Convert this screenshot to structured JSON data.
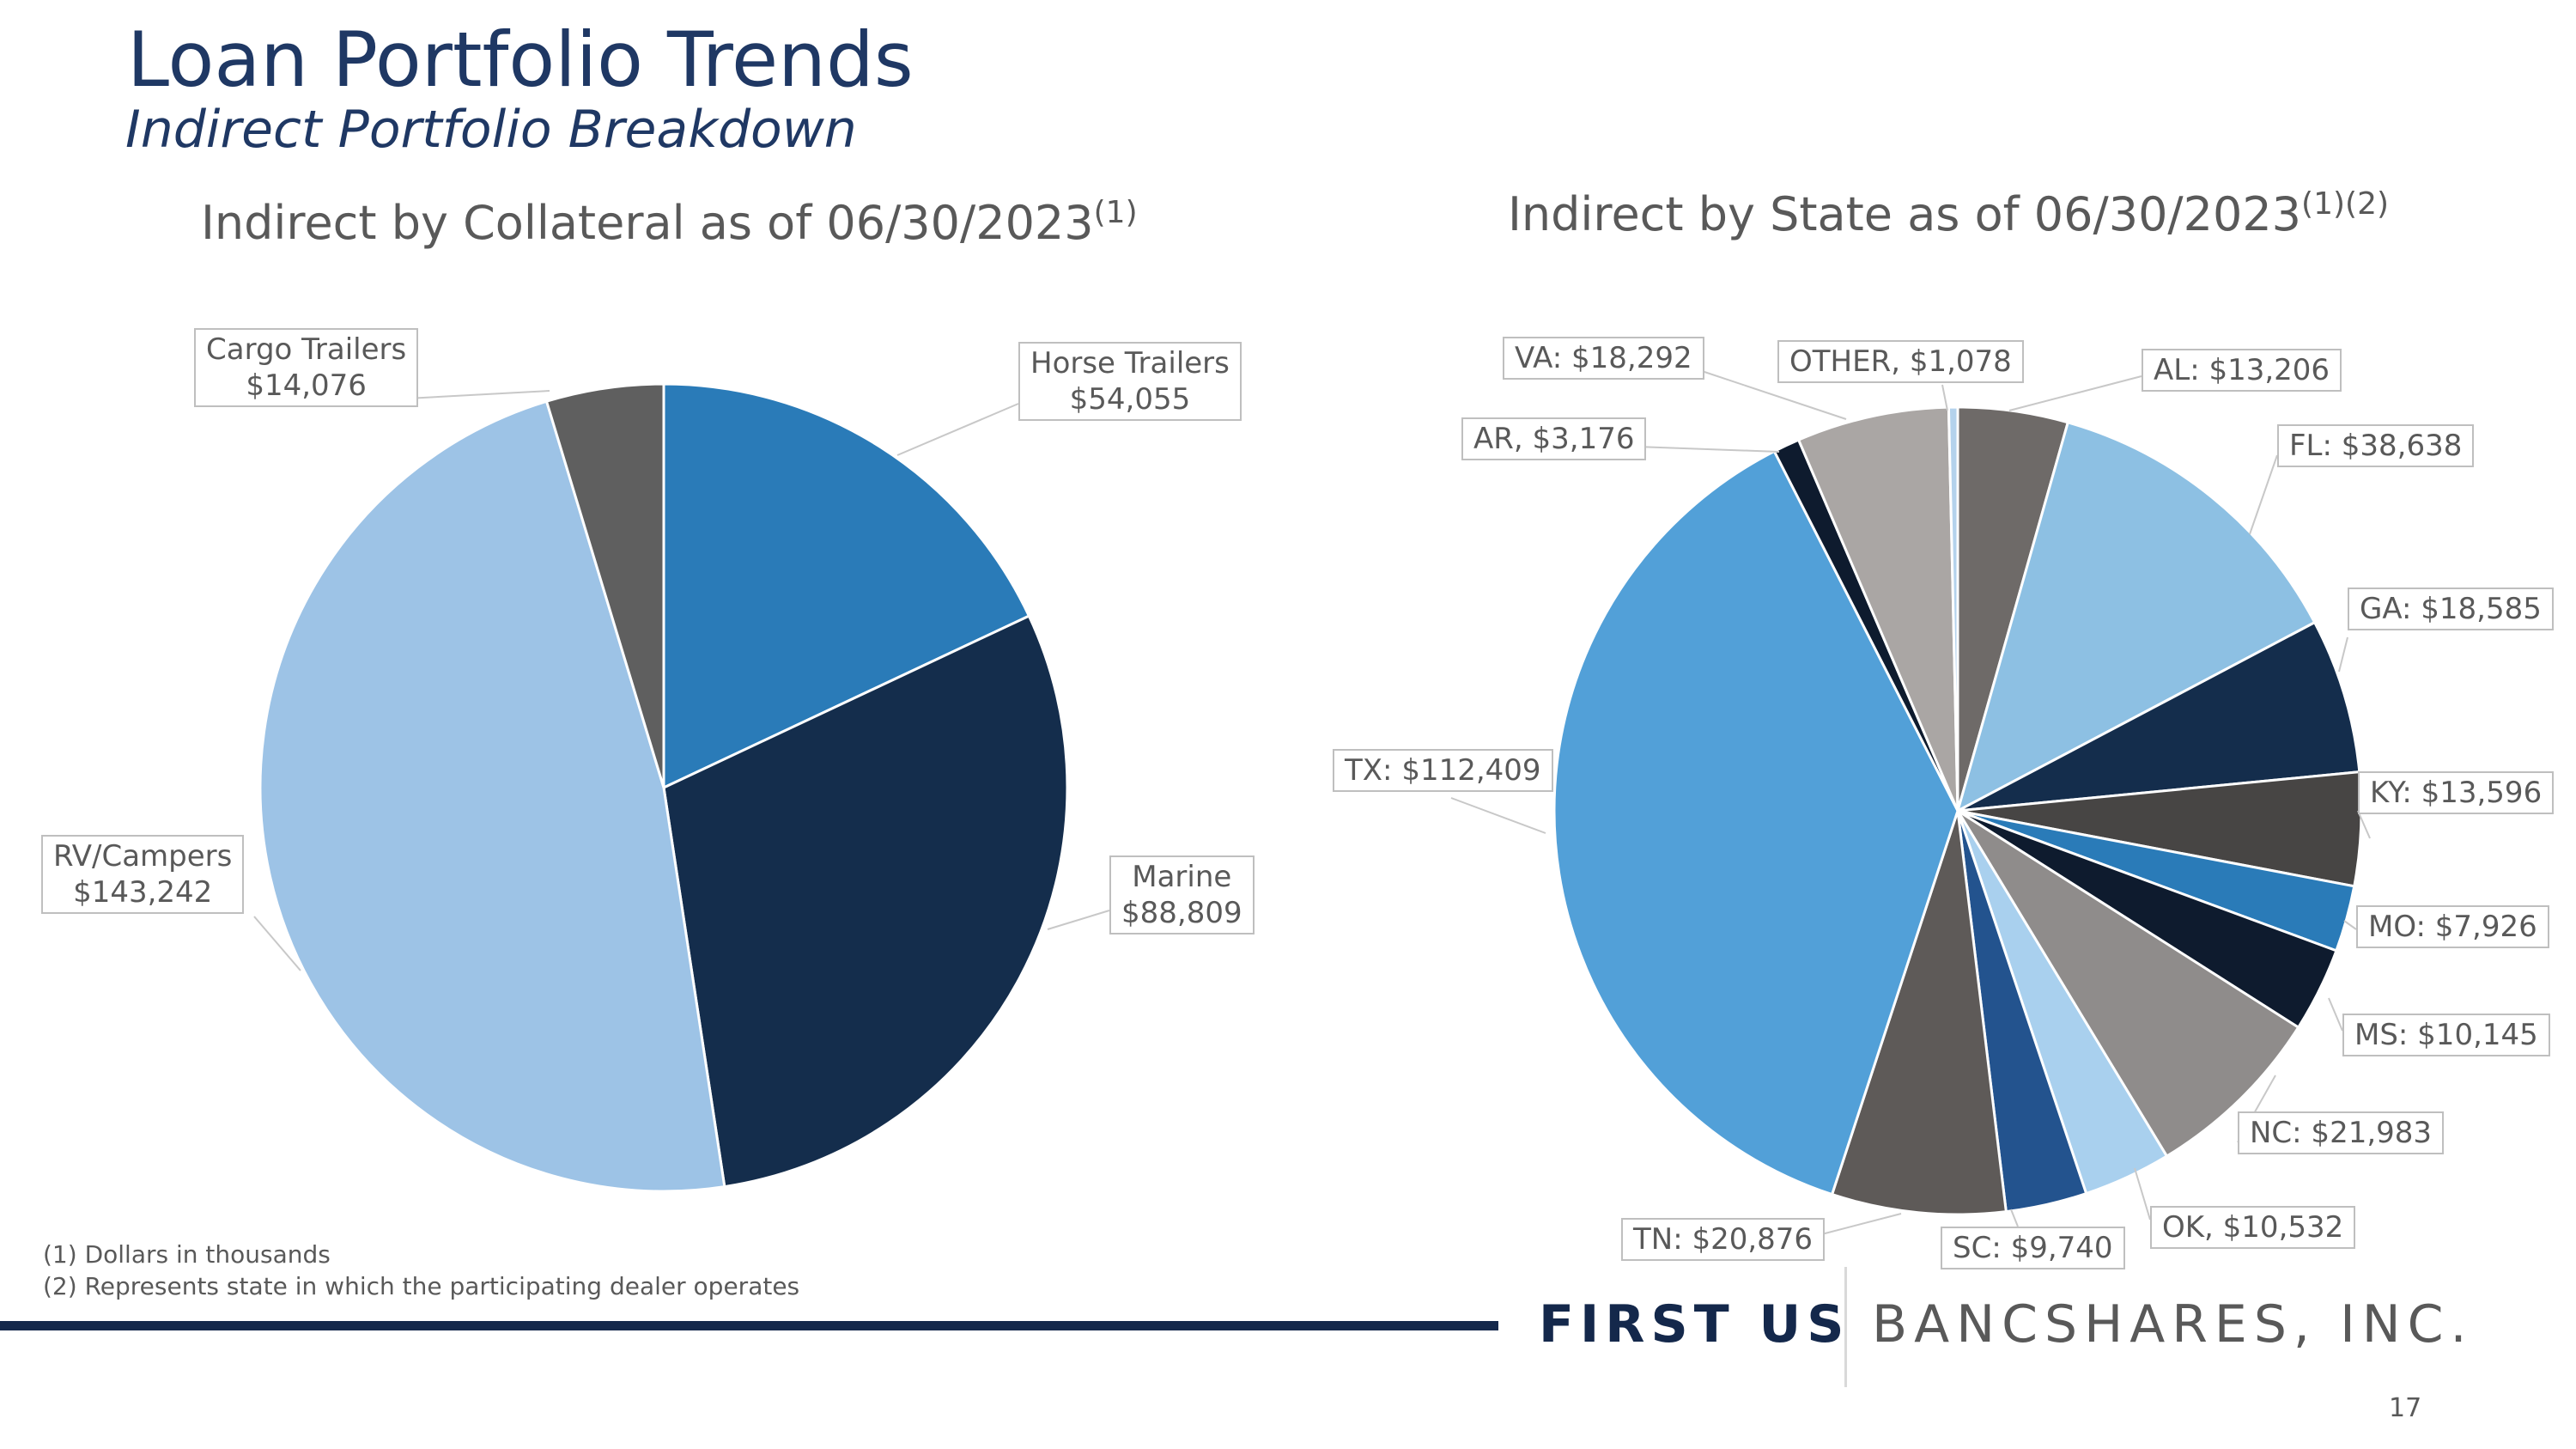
{
  "slide": {
    "title": "Loan Portfolio Trends",
    "subtitle": "Indirect Portfolio Breakdown",
    "footnotes": [
      "(1) Dollars in thousands",
      "(2) Represents state in which the participating dealer operates"
    ],
    "logo": {
      "part1": "FIRST US",
      "part2": "BANCSHARES, INC."
    },
    "page_number": "17"
  },
  "chart_data": [
    {
      "type": "pie",
      "title": "Indirect by Collateral as of 06/30/2023",
      "title_sup": "(1)",
      "slices": [
        {
          "label": "Horse Trailers",
          "value": 54055,
          "display": "$54,055",
          "color": "#2a7bb8"
        },
        {
          "label": "Marine",
          "value": 88809,
          "display": "$88,809",
          "color": "#142d4c"
        },
        {
          "label": "RV/Campers",
          "value": 143242,
          "display": "$143,242",
          "color": "#9dc3e6"
        },
        {
          "label": "Cargo Trailers",
          "value": 14076,
          "display": "$14,076",
          "color": "#5f5f5f"
        }
      ]
    },
    {
      "type": "pie",
      "title": "Indirect by State as of 06/30/2023",
      "title_sup": "(1)(2)",
      "slices": [
        {
          "label": "AL",
          "value": 13206,
          "display": "AL: $13,206",
          "color": "#6e6a68"
        },
        {
          "label": "FL",
          "value": 38638,
          "display": "FL: $38,638",
          "color": "#8dc0e3"
        },
        {
          "label": "GA",
          "value": 18585,
          "display": "GA: $18,585",
          "color": "#142d4c"
        },
        {
          "label": "KY",
          "value": 13596,
          "display": "KY: $13,596",
          "color": "#474544"
        },
        {
          "label": "MO",
          "value": 7926,
          "display": "MO: $7,926",
          "color": "#2a7bb8"
        },
        {
          "label": "MS",
          "value": 10145,
          "display": "MS: $10,145",
          "color": "#0e1b2e"
        },
        {
          "label": "NC",
          "value": 21983,
          "display": "NC: $21,983",
          "color": "#8f8c8b"
        },
        {
          "label": "OK",
          "value": 10532,
          "display": "OK, $10,532",
          "color": "#a9d0ee"
        },
        {
          "label": "SC",
          "value": 9740,
          "display": "SC: $9,740",
          "color": "#23538e"
        },
        {
          "label": "TN",
          "value": 20876,
          "display": "TN: $20,876",
          "color": "#5e5a58"
        },
        {
          "label": "TX",
          "value": 112409,
          "display": "TX: $112,409",
          "color": "#52a0d8"
        },
        {
          "label": "AR",
          "value": 3176,
          "display": "AR, $3,176",
          "color": "#0e1b2e"
        },
        {
          "label": "VA",
          "value": 18292,
          "display": "VA: $18,292",
          "color": "#aaa6a4"
        },
        {
          "label": "OTHER",
          "value": 1078,
          "display": "OTHER, $1,078",
          "color": "#b4d2ec"
        }
      ]
    }
  ]
}
